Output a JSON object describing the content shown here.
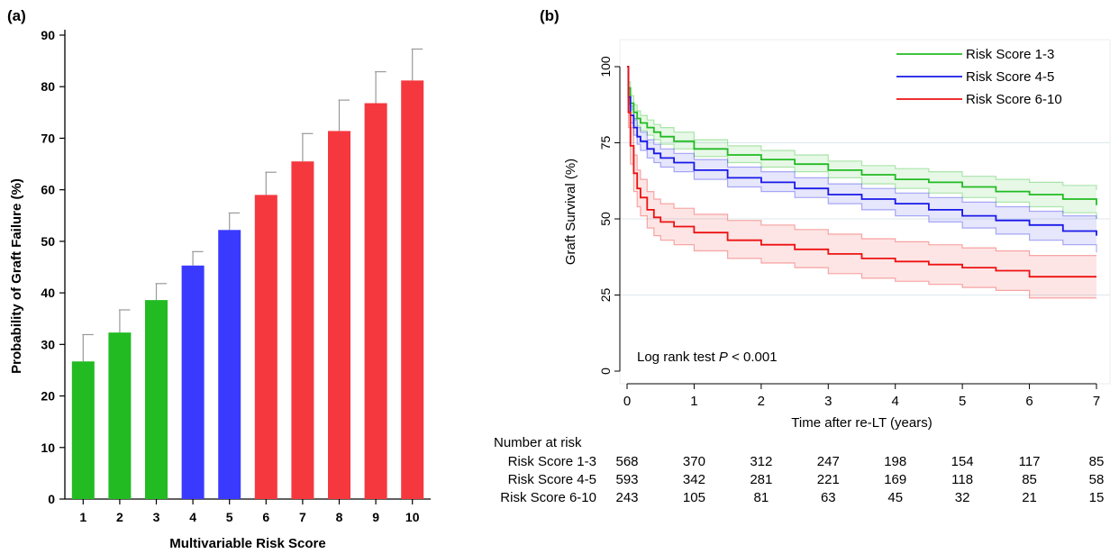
{
  "panels": {
    "a_label": "(a)",
    "b_label": "(b)"
  },
  "chart_data": [
    {
      "type": "bar",
      "panel": "(a)",
      "categories": [
        "1",
        "2",
        "3",
        "4",
        "5",
        "6",
        "7",
        "8",
        "9",
        "10"
      ],
      "values": [
        26.7,
        32.3,
        38.6,
        45.3,
        52.2,
        59.0,
        65.5,
        71.4,
        76.8,
        81.2
      ],
      "error_upper": [
        31.9,
        36.7,
        41.8,
        48.0,
        55.5,
        63.4,
        70.9,
        77.4,
        82.9,
        87.3
      ],
      "bar_colors": [
        "#22bb22",
        "#22bb22",
        "#22bb22",
        "#3a3aff",
        "#3a3aff",
        "#f5383e",
        "#f5383e",
        "#f5383e",
        "#f5383e",
        "#f5383e"
      ],
      "xlabel": "Multivariable Risk Score",
      "ylabel": "Probability of Graft Failure (%)",
      "ylim": [
        0,
        90
      ],
      "yticks": [
        "0",
        "10",
        "20",
        "30",
        "40",
        "50",
        "60",
        "70",
        "80",
        "90"
      ],
      "grid": false
    },
    {
      "type": "line",
      "panel": "(b)",
      "xlabel": "Time after re-LT (years)",
      "ylabel": "Graft Survival (%)",
      "xlim": [
        0,
        7
      ],
      "ylim": [
        0,
        100
      ],
      "xticks": [
        "0",
        "1",
        "2",
        "3",
        "4",
        "5",
        "6",
        "7"
      ],
      "yticks": [
        "0",
        "25",
        "50",
        "75",
        "100"
      ],
      "grid": true,
      "legend_position": "top-right",
      "annotation": {
        "prefix": "Log rank test ",
        "italic": "P",
        "suffix": " < 0.001"
      },
      "series": [
        {
          "name": "Risk Score 1-3",
          "color": "#22bb22",
          "x": [
            0,
            0.02,
            0.05,
            0.1,
            0.15,
            0.2,
            0.3,
            0.4,
            0.5,
            0.7,
            1.0,
            1.5,
            2.0,
            2.5,
            3.0,
            3.5,
            4.0,
            4.5,
            5.0,
            5.5,
            6.0,
            6.5,
            7.0
          ],
          "y": [
            100,
            93,
            88,
            85,
            83,
            81.5,
            80,
            78.5,
            77,
            75.5,
            73,
            71,
            69.5,
            68,
            66,
            64.5,
            63,
            62,
            60.5,
            59,
            58,
            56.5,
            54.5
          ],
          "lower": [
            100,
            91,
            86,
            82.5,
            80.5,
            79,
            77.5,
            76,
            74.5,
            73,
            70.5,
            68.5,
            67,
            65.5,
            63.5,
            61.5,
            60,
            58.5,
            57,
            55.5,
            54,
            52,
            50
          ],
          "upper": [
            100,
            95,
            90.5,
            87.5,
            85.5,
            84,
            82.5,
            81,
            80,
            78.5,
            76,
            74,
            72.5,
            71,
            69,
            67.5,
            66.5,
            65.5,
            64,
            63,
            62,
            61,
            59.5
          ]
        },
        {
          "name": "Risk Score 4-5",
          "color": "#1818e8",
          "x": [
            0,
            0.02,
            0.05,
            0.1,
            0.15,
            0.2,
            0.3,
            0.4,
            0.5,
            0.7,
            1.0,
            1.5,
            2.0,
            2.5,
            3.0,
            3.5,
            4.0,
            4.5,
            5.0,
            5.5,
            6.0,
            6.5,
            7.0
          ],
          "y": [
            100,
            90,
            84,
            80,
            77,
            75.5,
            73,
            71.5,
            70,
            68.5,
            66,
            63.5,
            62,
            60,
            58,
            56.5,
            55,
            53,
            51,
            49.5,
            48,
            46,
            44.5
          ],
          "lower": [
            100,
            87.5,
            81.5,
            77.5,
            74.5,
            72.5,
            70,
            68.5,
            67,
            65.5,
            63,
            60.5,
            59,
            57,
            55,
            53,
            51,
            49,
            47,
            45,
            43,
            41.5,
            39
          ],
          "upper": [
            100,
            92.5,
            87,
            83,
            80,
            78.5,
            76,
            74.5,
            73,
            71.5,
            69.5,
            67,
            65.5,
            63.5,
            61.5,
            60,
            58.5,
            57,
            55.5,
            54,
            52.5,
            51,
            50
          ]
        },
        {
          "name": "Risk Score 6-10",
          "color": "#ee1111",
          "x": [
            0,
            0.02,
            0.05,
            0.1,
            0.15,
            0.2,
            0.3,
            0.4,
            0.5,
            0.7,
            1.0,
            1.5,
            2.0,
            2.5,
            3.0,
            3.5,
            4.0,
            4.5,
            5.0,
            5.5,
            6.0,
            6.5,
            7.0
          ],
          "y": [
            100,
            85,
            74,
            65,
            60,
            57,
            53,
            50.5,
            49,
            47.5,
            45.5,
            43,
            41.5,
            40,
            38.5,
            37,
            36,
            35,
            34,
            33,
            31,
            31,
            31
          ],
          "lower": [
            100,
            80,
            68,
            59,
            54,
            51,
            47,
            44.5,
            43,
            41.5,
            39.5,
            37,
            35.5,
            34,
            32,
            30.5,
            29.5,
            28.5,
            27.5,
            26.5,
            24,
            24,
            24
          ],
          "upper": [
            100,
            89,
            80,
            71,
            66,
            63,
            59,
            56.5,
            55,
            53.5,
            51.5,
            49.5,
            48,
            46.5,
            45,
            43.5,
            42.5,
            41.5,
            40.5,
            39.5,
            38,
            38,
            38
          ]
        }
      ]
    }
  ],
  "risk_table": {
    "title": "Number at risk",
    "rows": [
      {
        "label": "Risk Score 1-3",
        "values": [
          "568",
          "370",
          "312",
          "247",
          "198",
          "154",
          "117",
          "85"
        ]
      },
      {
        "label": "Risk Score 4-5",
        "values": [
          "593",
          "342",
          "281",
          "221",
          "169",
          "118",
          "85",
          "58"
        ]
      },
      {
        "label": "Risk Score 6-10",
        "values": [
          "243",
          "105",
          "81",
          "63",
          "45",
          "32",
          "21",
          "15"
        ]
      }
    ]
  }
}
